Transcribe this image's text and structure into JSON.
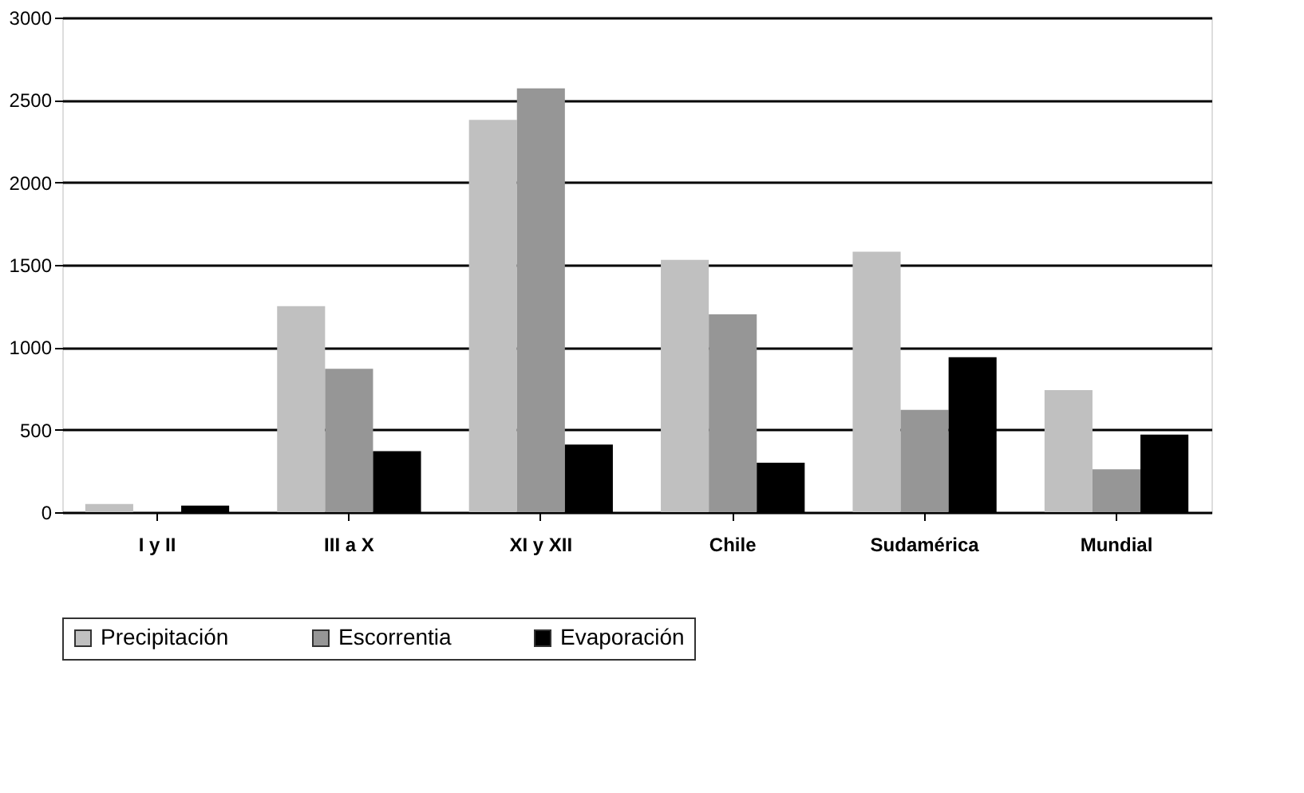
{
  "chart_data": {
    "type": "bar",
    "categories": [
      "I y II",
      "III a X",
      "XI y XII",
      "Chile",
      "Sudamérica",
      "Mundial"
    ],
    "series": [
      {
        "name": "Precipitación",
        "color": "#c0c0c0",
        "values": [
          50,
          1250,
          2380,
          1530,
          1580,
          740
        ]
      },
      {
        "name": "Escorrentia",
        "color": "#969696",
        "values": [
          0,
          870,
          2570,
          1200,
          620,
          260
        ]
      },
      {
        "name": "Evaporación",
        "color": "#000000",
        "values": [
          40,
          370,
          410,
          300,
          940,
          470
        ]
      }
    ],
    "ylim": [
      0,
      3000
    ],
    "yticks": [
      0,
      500,
      1000,
      1500,
      2000,
      2500,
      3000
    ],
    "grid": "y",
    "legend": "bottom"
  }
}
